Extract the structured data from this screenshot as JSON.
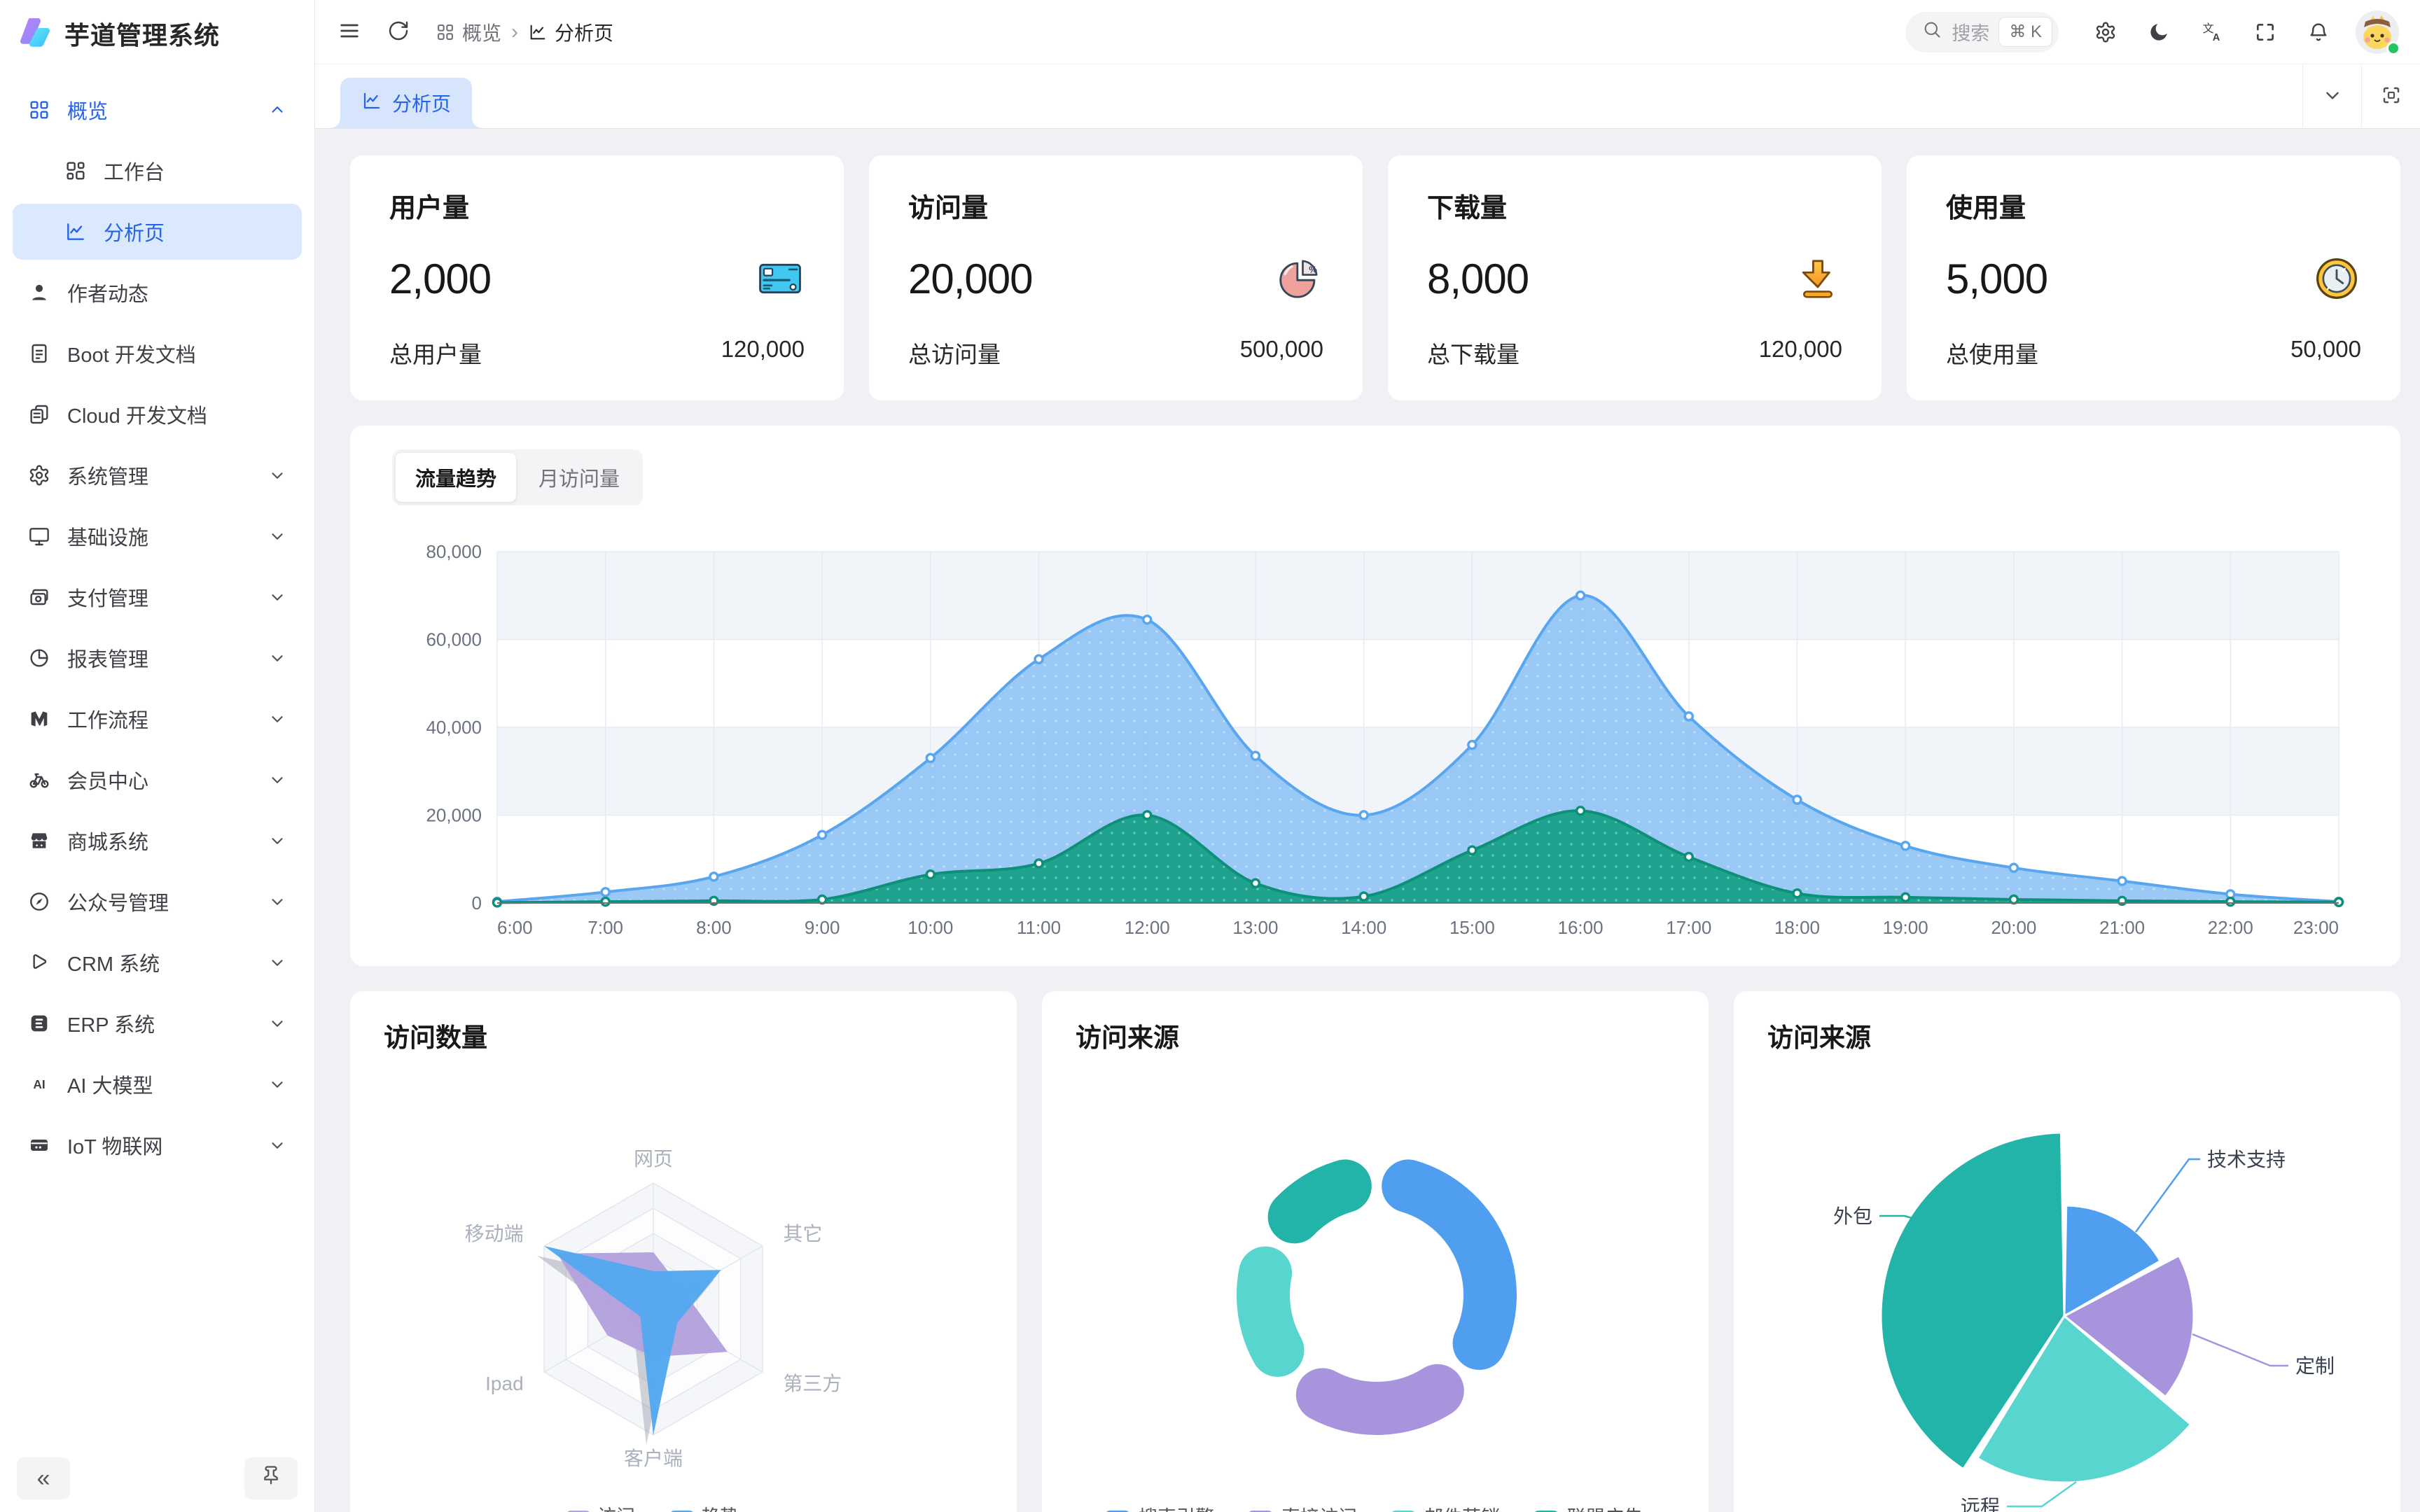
{
  "app": {
    "title": "芋道管理系统"
  },
  "header": {
    "breadcrumb": [
      {
        "icon": "grid",
        "label": "概览"
      },
      {
        "icon": "analysis",
        "label": "分析页"
      }
    ],
    "search": {
      "placeholder": "搜索",
      "shortcut": "⌘ K"
    },
    "actions": [
      {
        "icon": "gear",
        "name": "settings"
      },
      {
        "icon": "moon",
        "name": "dark-mode"
      },
      {
        "icon": "translate",
        "name": "language"
      },
      {
        "icon": "fullscreen",
        "name": "fullscreen"
      },
      {
        "icon": "bell",
        "name": "notifications"
      }
    ]
  },
  "tabbar": {
    "active_tab": {
      "icon": "analysis",
      "label": "分析页"
    }
  },
  "sidebar": {
    "collapse_label": "«",
    "items": [
      {
        "icon": "grid",
        "label": "概览",
        "expanded": true,
        "children": [
          {
            "icon": "workbench",
            "label": "工作台"
          },
          {
            "icon": "analysis",
            "label": "分析页",
            "active": true
          }
        ]
      },
      {
        "icon": "user",
        "label": "作者动态"
      },
      {
        "icon": "doc",
        "label": "Boot 开发文档"
      },
      {
        "icon": "docs",
        "label": "Cloud 开发文档"
      },
      {
        "icon": "gear",
        "label": "系统管理",
        "collapsible": true
      },
      {
        "icon": "monitor",
        "label": "基础设施",
        "collapsible": true
      },
      {
        "icon": "paycard",
        "label": "支付管理",
        "collapsible": true
      },
      {
        "icon": "pie",
        "label": "报表管理",
        "collapsible": true
      },
      {
        "icon": "flow",
        "label": "工作流程",
        "collapsible": true
      },
      {
        "icon": "bike",
        "label": "会员中心",
        "collapsible": true
      },
      {
        "icon": "shop",
        "label": "商城系统",
        "collapsible": true
      },
      {
        "icon": "compass",
        "label": "公众号管理",
        "collapsible": true
      },
      {
        "icon": "crm",
        "label": "CRM 系统",
        "collapsible": true
      },
      {
        "icon": "erp",
        "label": "ERP 系统",
        "collapsible": true
      },
      {
        "icon": "ai",
        "label": "AI 大模型",
        "collapsible": true
      },
      {
        "icon": "iot",
        "label": "IoT 物联网",
        "collapsible": true
      }
    ]
  },
  "stats": [
    {
      "title": "用户量",
      "value": "2,000",
      "icon": "card-blue",
      "footer_label": "总用户量",
      "footer_value": "120,000"
    },
    {
      "title": "访问量",
      "value": "20,000",
      "icon": "pie-pink",
      "footer_label": "总访问量",
      "footer_value": "500,000"
    },
    {
      "title": "下载量",
      "value": "8,000",
      "icon": "download-orange",
      "footer_label": "总下载量",
      "footer_value": "120,000"
    },
    {
      "title": "使用量",
      "value": "5,000",
      "icon": "clock-yellow",
      "footer_label": "总使用量",
      "footer_value": "50,000"
    }
  ],
  "trend": {
    "tabs": [
      "流量趋势",
      "月访问量"
    ],
    "active_index": 0
  },
  "cards": {
    "radar_title": "访问数量",
    "donut_title": "访问来源",
    "rose_title": "访问来源"
  },
  "chart_data": [
    {
      "id": "traffic-trend",
      "type": "area",
      "x": [
        "6:00",
        "7:00",
        "8:00",
        "9:00",
        "10:00",
        "11:00",
        "12:00",
        "13:00",
        "14:00",
        "15:00",
        "16:00",
        "17:00",
        "18:00",
        "19:00",
        "20:00",
        "21:00",
        "22:00",
        "23:00"
      ],
      "ylim": [
        0,
        80000
      ],
      "ytick_labels": [
        "0",
        "20,000",
        "40,000",
        "60,000",
        "80,000"
      ],
      "grid": true,
      "series": [
        {
          "color": "#58A6F0",
          "fill": "#8CC1F5",
          "values": [
            300,
            2500,
            6000,
            15500,
            33000,
            55500,
            64500,
            33500,
            20000,
            36000,
            70000,
            42500,
            23500,
            13000,
            8000,
            5000,
            2000,
            300
          ]
        },
        {
          "color": "#0C9078",
          "fill": "#18A189",
          "values": [
            100,
            300,
            500,
            800,
            6500,
            9000,
            20000,
            4500,
            1500,
            12000,
            21000,
            10500,
            2200,
            1300,
            800,
            500,
            300,
            200
          ]
        }
      ]
    },
    {
      "id": "visit-count",
      "type": "radar",
      "title": "访问数量",
      "indicators": [
        "网页",
        "其它",
        "第三方",
        "客户端",
        "Ipad",
        "移动端"
      ],
      "series": [
        {
          "name": "访问",
          "color": "#B4A1DE",
          "values_pct": [
            45,
            28,
            68,
            38,
            42,
            88
          ]
        },
        {
          "name": "趋势",
          "color": "#54A8EE",
          "values_pct": [
            30,
            62,
            22,
            100,
            12,
            100
          ]
        }
      ],
      "legend": [
        "访问",
        "趋势"
      ],
      "legend_position": "bottom"
    },
    {
      "id": "visit-source-donut",
      "type": "pie",
      "variant": "donut",
      "title": "访问来源",
      "slices": [
        {
          "name": "搜索引擎",
          "color": "#4F9EF0",
          "pct": 36.5
        },
        {
          "name": "直接访问",
          "color": "#A893DD",
          "pct": 25.9
        },
        {
          "name": "邮件营销",
          "color": "#58D5CF",
          "pct": 20.2
        },
        {
          "name": "联盟广告",
          "color": "#23B4A9",
          "pct": 17.4
        }
      ],
      "legend_position": "bottom"
    },
    {
      "id": "visit-source-rose",
      "type": "pie",
      "variant": "rose",
      "title": "访问来源",
      "slices": [
        {
          "name": "技术支持",
          "color": "#4F9EF0",
          "pct": 17,
          "radius_px": 158
        },
        {
          "name": "定制",
          "color": "#A893DD",
          "pct": 19,
          "radius_px": 185
        },
        {
          "name": "远程",
          "color": "#58D5CF",
          "pct": 23,
          "radius_px": 238
        },
        {
          "name": "外包",
          "color": "#23B4A9",
          "pct": 41,
          "radius_px": 262
        }
      ],
      "labels_outside": true
    }
  ]
}
